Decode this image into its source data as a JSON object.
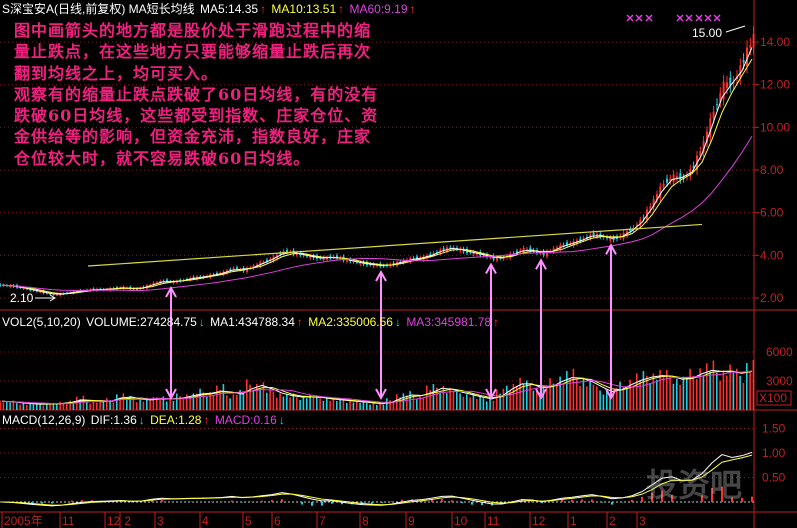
{
  "header": {
    "title": "S深宝安A(日线,前复权) MA短长均线",
    "ma5": "MA5:14.35",
    "ma10": "MA10:13.51",
    "ma60": "MA60:9.19",
    "up_arrow": "↑",
    "down_arrow": "↓"
  },
  "volume_header": {
    "name": "VOL2(5,10,20)",
    "volume": "VOLUME:274284.75",
    "ma1": "MA1:434788.34",
    "ma2": "MA2:335006.56",
    "ma3": "MA3:345981.78"
  },
  "macd_header": {
    "name": "MACD(12,26,9)",
    "dif": "DIF:1.36",
    "dea": "DEA:1.28",
    "macd": "MACD:0.16"
  },
  "annotation": [
    "图中画箭头的地方都是股价处于滑跑过程中的缩",
    "量止跌点，在这些地方只要能够缩量止跌后再次",
    "翻到均线之上，均可买入。",
    "观察有的缩量止跌点跌破了60日均线，有的没有",
    "跌破60日均线，这些都受到指数、庄家仓位、资",
    "金供给等的影响，但资金充沛，指数良好，庄家",
    "仓位较大时，就不容易跌破60日均线。"
  ],
  "watermark": "投资吧",
  "colors": {
    "up": "#ff3030",
    "down": "#20d0e0",
    "ma_short": "#ffffff",
    "ma_mid": "#ffff40",
    "ma_long": "#e040e0",
    "axis": "#c02020",
    "arrow": "#ff90ff",
    "trendline": "#d8d840"
  },
  "chart_data": {
    "type": "candlestick",
    "price": {
      "closes": [
        2.6,
        2.55,
        2.45,
        2.35,
        2.25,
        2.15,
        2.2,
        2.3,
        2.35,
        2.4,
        2.4,
        2.45,
        2.5,
        2.4,
        2.5,
        2.7,
        2.8,
        2.75,
        2.85,
        2.95,
        3.0,
        3.1,
        3.2,
        3.4,
        3.3,
        3.5,
        3.7,
        3.9,
        4.2,
        4.1,
        4.0,
        3.9,
        3.85,
        3.95,
        3.8,
        3.7,
        3.6,
        3.55,
        3.5,
        3.6,
        3.75,
        3.85,
        3.9,
        4.1,
        4.3,
        4.35,
        4.2,
        4.1,
        4.0,
        3.85,
        3.9,
        4.1,
        4.3,
        4.2,
        4.05,
        4.3,
        4.5,
        4.6,
        4.8,
        5.0,
        4.85,
        4.75,
        5.0,
        5.3,
        5.8,
        6.6,
        7.4,
        7.7,
        7.6,
        8.2,
        9.3,
        10.8,
        12.0,
        12.1,
        13.2,
        14.3
      ],
      "ylim": [
        1.2,
        15.5
      ],
      "yticks": [
        "2.00",
        "4.00",
        "6.00",
        "8.00",
        "10.00",
        "12.00",
        "14.00"
      ],
      "ytick_values": [
        2,
        4,
        6,
        8,
        10,
        12,
        14
      ],
      "high_label": "15.00",
      "low_label": "2.10",
      "buy_arrow_points": [
        17,
        38,
        49,
        54,
        61
      ],
      "trendline": {
        "from": {
          "index": 8.6,
          "price": 3.5
        },
        "to": {
          "index": 70,
          "price": 5.45
        }
      }
    },
    "volume": {
      "values": [
        900,
        800,
        700,
        600,
        600,
        650,
        700,
        900,
        1200,
        800,
        900,
        1000,
        1500,
        1200,
        1000,
        1100,
        1300,
        1000,
        1400,
        1500,
        1800,
        1700,
        2200,
        1500,
        1800,
        2600,
        2500,
        1900,
        1600,
        1400,
        1300,
        1400,
        1200,
        1100,
        1000,
        900,
        800,
        700,
        600,
        1000,
        1500,
        1600,
        1400,
        2200,
        2300,
        2000,
        1700,
        1500,
        1200,
        1100,
        1800,
        2500,
        2900,
        2500,
        2100,
        2700,
        3200,
        3500,
        3100,
        2800,
        2000,
        1800,
        2400,
        2900,
        3300,
        3500,
        3600,
        3400,
        3000,
        3500,
        4000,
        4200,
        3800,
        4100,
        3500,
        4500
      ],
      "yticks": [
        "3000",
        "6000"
      ],
      "ytick_values": [
        3000,
        6000
      ],
      "unit": "X100"
    },
    "macd": {
      "yticks": [
        "0.50",
        "1.00",
        "1.50"
      ],
      "ytick_values": [
        0.5,
        1.0,
        1.5
      ]
    },
    "date_ticks": [
      {
        "label": "2005年",
        "index": 0
      },
      {
        "label": "11",
        "index": 5.8
      },
      {
        "label": "12",
        "index": 10.3
      },
      {
        "label": "2",
        "index": 11.8
      },
      {
        "label": "3",
        "index": 15.3
      },
      {
        "label": "4",
        "index": 19.8
      },
      {
        "label": "5",
        "index": 24.1
      },
      {
        "label": "6",
        "index": 27
      },
      {
        "label": "7",
        "index": 31.5
      },
      {
        "label": "8",
        "index": 35.8
      },
      {
        "label": "9",
        "index": 40.4
      },
      {
        "label": "10",
        "index": 45
      },
      {
        "label": "11",
        "index": 48.3
      },
      {
        "label": "12",
        "index": 52.8
      },
      {
        "label": "1",
        "index": 56.6
      },
      {
        "label": "2",
        "index": 60.5
      },
      {
        "label": "3",
        "index": 63.5
      }
    ]
  }
}
